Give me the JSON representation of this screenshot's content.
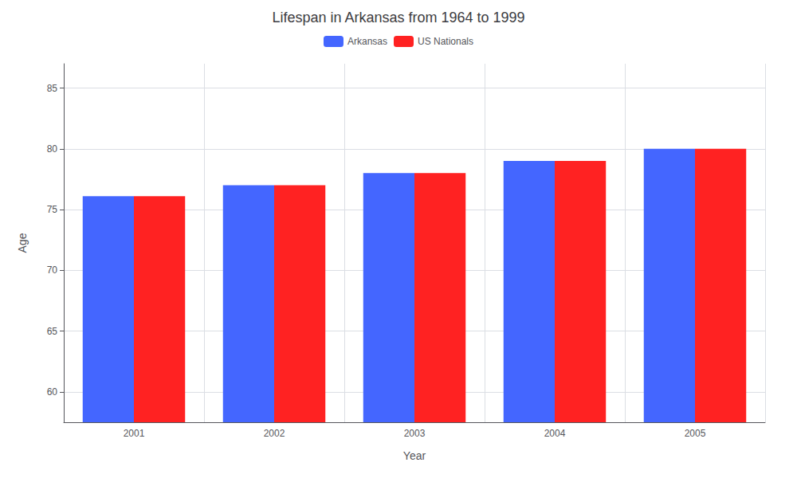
{
  "chart_data": {
    "type": "bar",
    "title": "Lifespan in Arkansas from 1964 to 1999",
    "x_label": "Year",
    "y_label": "Age",
    "categories": [
      "2001",
      "2002",
      "2003",
      "2004",
      "2005"
    ],
    "series": [
      {
        "name": "Arkansas",
        "color": "#4466ff",
        "values": [
          76.1,
          77.0,
          78.0,
          79.0,
          80.0
        ]
      },
      {
        "name": "US Nationals",
        "color": "#ff2222",
        "values": [
          76.1,
          77.0,
          78.0,
          79.0,
          80.0
        ]
      }
    ],
    "ylim": [
      57.5,
      87
    ],
    "yticks": [
      60,
      65,
      70,
      75,
      80,
      85
    ],
    "grid": true,
    "legend": "top"
  }
}
